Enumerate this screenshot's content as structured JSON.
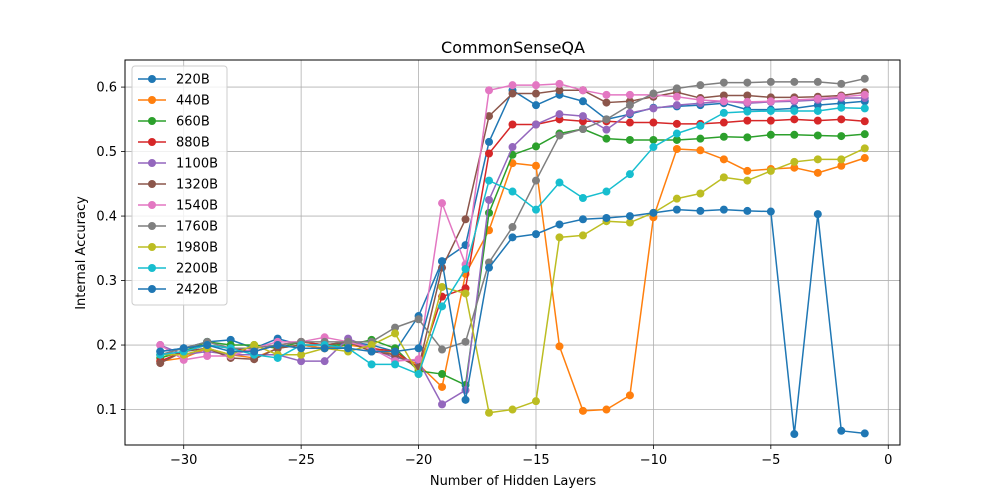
{
  "chart_data": {
    "type": "line",
    "title": "CommonSenseQA",
    "xlabel": "Number of Hidden Layers",
    "ylabel": "Internal Accuracy",
    "xlim": [
      -32.5,
      0.5
    ],
    "ylim": [
      0.045,
      0.642
    ],
    "xticks": [
      -30,
      -25,
      -20,
      -15,
      -10,
      -5,
      0
    ],
    "xtick_labels": [
      "−30",
      "−25",
      "−20",
      "−15",
      "−10",
      "−5",
      "0"
    ],
    "yticks": [
      0.1,
      0.2,
      0.3,
      0.4,
      0.5,
      0.6
    ],
    "ytick_labels": [
      "0.1",
      "0.2",
      "0.3",
      "0.4",
      "0.5",
      "0.6"
    ],
    "grid": true,
    "legend_position": "upper-left",
    "x": [
      -31,
      -30,
      -29,
      -28,
      -27,
      -26,
      -25,
      -24,
      -23,
      -22,
      -21,
      -20,
      -19,
      -18,
      -17,
      -16,
      -15,
      -14,
      -13,
      -12,
      -11,
      -10,
      -9,
      -8,
      -7,
      -6,
      -5,
      -4,
      -3,
      -2,
      -1
    ],
    "series": [
      {
        "name": "220B",
        "color": "#1f77b4",
        "values": [
          0.19,
          0.195,
          0.205,
          0.208,
          0.195,
          0.21,
          0.2,
          0.195,
          0.205,
          0.2,
          0.19,
          0.245,
          0.33,
          0.355,
          0.515,
          0.595,
          0.572,
          0.588,
          0.578,
          0.55,
          0.558,
          0.568,
          0.57,
          0.572,
          0.575,
          0.565,
          0.565,
          0.567,
          0.572,
          0.575,
          0.578
        ]
      },
      {
        "name": "440B",
        "color": "#ff7f0e",
        "values": [
          0.175,
          0.18,
          0.195,
          0.185,
          0.18,
          0.195,
          0.2,
          0.195,
          0.2,
          0.195,
          0.185,
          0.17,
          0.135,
          0.31,
          0.378,
          0.482,
          0.478,
          0.198,
          0.098,
          0.1,
          0.122,
          0.398,
          0.504,
          0.502,
          0.488,
          0.47,
          0.473,
          0.475,
          0.467,
          0.478,
          0.49
        ]
      },
      {
        "name": "660B",
        "color": "#2ca02c",
        "values": [
          0.18,
          0.19,
          0.205,
          0.2,
          0.2,
          0.195,
          0.205,
          0.2,
          0.2,
          0.208,
          0.195,
          0.16,
          0.155,
          0.138,
          0.405,
          0.495,
          0.508,
          0.528,
          0.535,
          0.52,
          0.518,
          0.518,
          0.518,
          0.52,
          0.523,
          0.522,
          0.526,
          0.526,
          0.525,
          0.524,
          0.527
        ]
      },
      {
        "name": "880B",
        "color": "#d62728",
        "values": [
          0.175,
          0.19,
          0.2,
          0.195,
          0.19,
          0.2,
          0.205,
          0.2,
          0.205,
          0.195,
          0.19,
          0.165,
          0.275,
          0.288,
          0.497,
          0.542,
          0.542,
          0.55,
          0.547,
          0.547,
          0.545,
          0.545,
          0.543,
          0.543,
          0.545,
          0.548,
          0.548,
          0.55,
          0.548,
          0.55,
          0.547
        ]
      },
      {
        "name": "1100B",
        "color": "#9467bd",
        "values": [
          0.2,
          0.185,
          0.19,
          0.185,
          0.185,
          0.185,
          0.175,
          0.175,
          0.21,
          0.195,
          0.18,
          0.175,
          0.108,
          0.13,
          0.425,
          0.507,
          0.542,
          0.558,
          0.555,
          0.534,
          0.56,
          0.567,
          0.572,
          0.575,
          0.578,
          0.575,
          0.577,
          0.578,
          0.58,
          0.583,
          0.583
        ]
      },
      {
        "name": "1320B",
        "color": "#8c564b",
        "values": [
          0.172,
          0.19,
          0.195,
          0.18,
          0.178,
          0.195,
          0.2,
          0.2,
          0.205,
          0.19,
          0.185,
          0.165,
          0.32,
          0.395,
          0.555,
          0.59,
          0.59,
          0.595,
          0.595,
          0.576,
          0.578,
          0.585,
          0.592,
          0.583,
          0.587,
          0.587,
          0.584,
          0.584,
          0.585,
          0.587,
          0.592
        ]
      },
      {
        "name": "1540B",
        "color": "#e377c2",
        "values": [
          0.2,
          0.177,
          0.183,
          0.183,
          0.195,
          0.205,
          0.205,
          0.212,
          0.205,
          0.195,
          0.175,
          0.178,
          0.42,
          0.325,
          0.595,
          0.603,
          0.603,
          0.605,
          0.595,
          0.588,
          0.588,
          0.588,
          0.585,
          0.58,
          0.578,
          0.577,
          0.578,
          0.58,
          0.582,
          0.585,
          0.588
        ]
      },
      {
        "name": "1760B",
        "color": "#7f7f7f",
        "values": [
          0.185,
          0.195,
          0.205,
          0.195,
          0.195,
          0.2,
          0.205,
          0.205,
          0.205,
          0.205,
          0.227,
          0.24,
          0.193,
          0.205,
          0.328,
          0.383,
          0.455,
          0.525,
          0.535,
          0.55,
          0.572,
          0.59,
          0.598,
          0.603,
          0.607,
          0.607,
          0.608,
          0.608,
          0.608,
          0.605,
          0.613
        ]
      },
      {
        "name": "1980B",
        "color": "#bcbd22",
        "values": [
          0.185,
          0.185,
          0.195,
          0.185,
          0.2,
          0.185,
          0.185,
          0.195,
          0.19,
          0.2,
          0.218,
          0.155,
          0.29,
          0.28,
          0.095,
          0.1,
          0.113,
          0.367,
          0.37,
          0.392,
          0.39,
          0.405,
          0.427,
          0.435,
          0.46,
          0.455,
          0.47,
          0.484,
          0.488,
          0.488,
          0.505
        ]
      },
      {
        "name": "2200B",
        "color": "#17becf",
        "values": [
          0.185,
          0.19,
          0.2,
          0.195,
          0.185,
          0.18,
          0.2,
          0.2,
          0.195,
          0.17,
          0.17,
          0.155,
          0.26,
          0.318,
          0.455,
          0.438,
          0.41,
          0.452,
          0.428,
          0.438,
          0.465,
          0.507,
          0.528,
          0.54,
          0.56,
          0.562,
          0.563,
          0.563,
          0.563,
          0.568,
          0.567
        ]
      },
      {
        "name": "2420B",
        "color": "#1f77b4",
        "values": [
          0.19,
          0.195,
          0.2,
          0.19,
          0.19,
          0.2,
          0.195,
          0.195,
          0.195,
          0.19,
          0.19,
          0.195,
          0.33,
          0.115,
          0.32,
          0.367,
          0.372,
          0.387,
          0.395,
          0.397,
          0.4,
          0.405,
          0.41,
          0.408,
          0.41,
          0.408,
          0.407,
          0.062,
          0.403,
          0.067,
          0.063
        ]
      }
    ]
  }
}
